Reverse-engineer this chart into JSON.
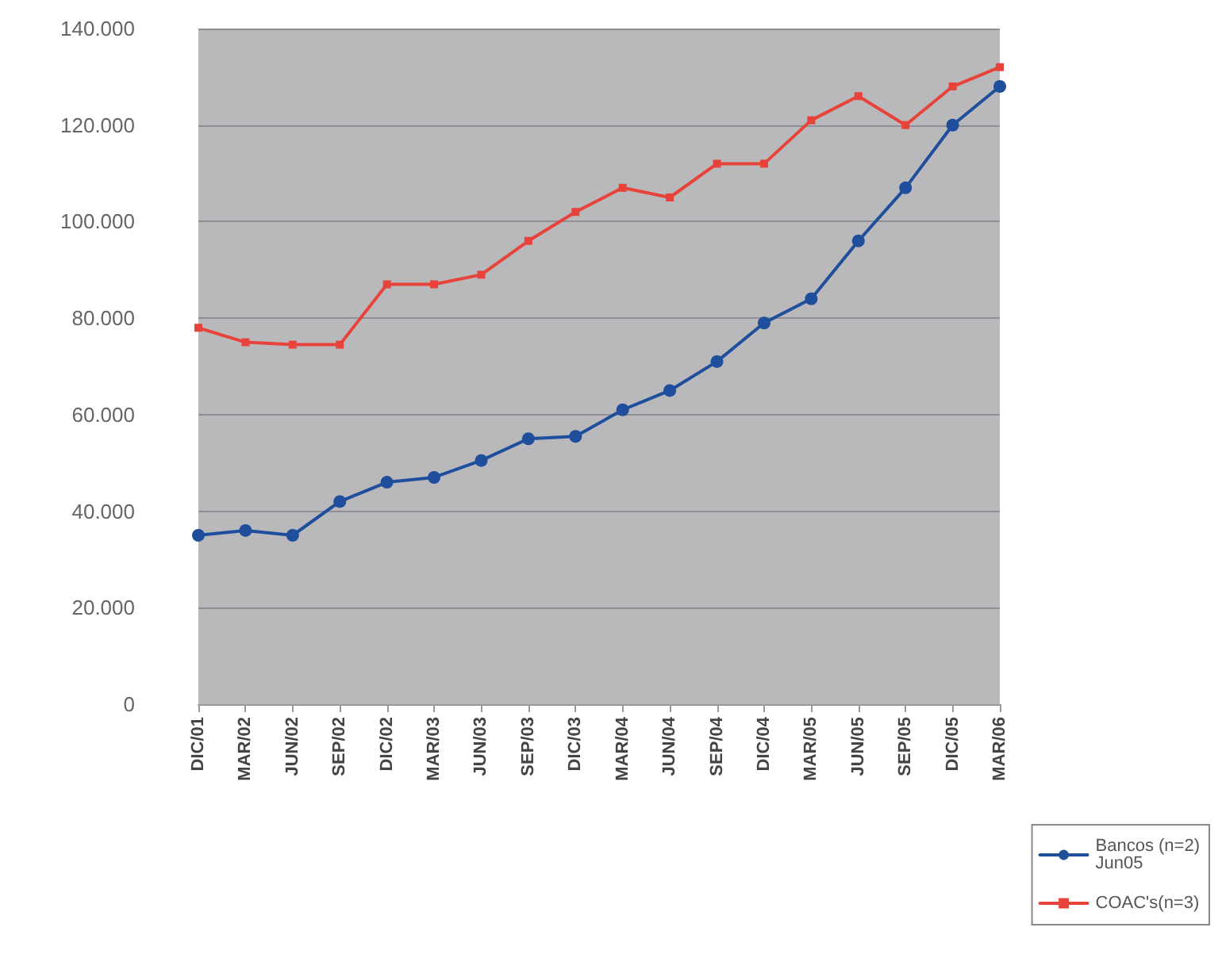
{
  "chart_data": {
    "type": "line",
    "categories": [
      "DIC/01",
      "MAR/02",
      "JUN/02",
      "SEP/02",
      "DIC/02",
      "MAR/03",
      "JUN/03",
      "SEP/03",
      "DIC/03",
      "MAR/04",
      "JUN/04",
      "SEP/04",
      "DIC/04",
      "MAR/05",
      "JUN/05",
      "SEP/05",
      "DIC/05",
      "MAR/06"
    ],
    "series": [
      {
        "name": "Bancos (n=2)\nJun05",
        "color": "#1f4e9c",
        "marker": "circle",
        "values": [
          35000,
          36000,
          35000,
          42000,
          46000,
          47000,
          50500,
          55000,
          55500,
          61000,
          65000,
          71000,
          79000,
          84000,
          96000,
          107000,
          120000,
          128000
        ]
      },
      {
        "name": "COAC's(n=3)",
        "color": "#e8433a",
        "marker": "square",
        "values": [
          78000,
          75000,
          74500,
          74500,
          87000,
          87000,
          89000,
          96000,
          102000,
          107000,
          105000,
          112000,
          112000,
          121000,
          126000,
          120000,
          128000,
          132000
        ]
      }
    ],
    "ylim": [
      0,
      140000
    ],
    "yticks": [
      {
        "value": 0,
        "label": "0"
      },
      {
        "value": 20000,
        "label": "20.000"
      },
      {
        "value": 40000,
        "label": "40.000"
      },
      {
        "value": 60000,
        "label": "60.000"
      },
      {
        "value": 80000,
        "label": "80.000"
      },
      {
        "value": 100000,
        "label": "100.000"
      },
      {
        "value": 120000,
        "label": "120.000"
      },
      {
        "value": 140000,
        "label": "140.000"
      }
    ],
    "grid": "y",
    "legend": "bottom right",
    "line_style": "solid"
  }
}
